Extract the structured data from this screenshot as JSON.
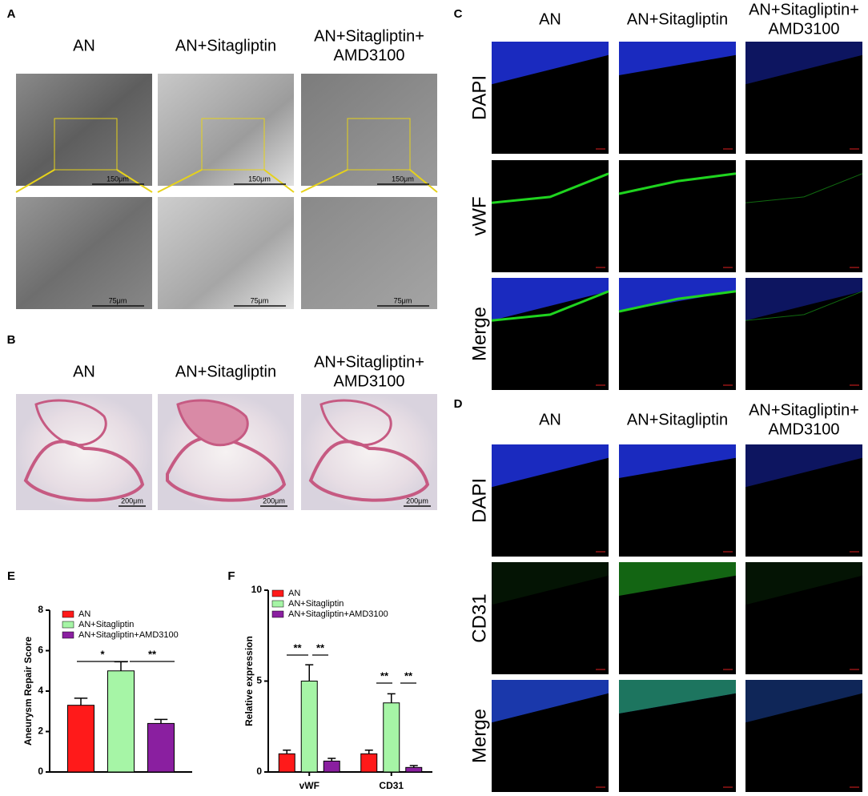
{
  "figure": {
    "panel_A": {
      "label": "A",
      "columns": [
        [
          "AN"
        ],
        [
          "AN+Sitagliptin"
        ],
        [
          "AN+Sitagliptin+",
          "AMD3100"
        ]
      ],
      "scale_top": "150μm",
      "scale_bottom": "75μm"
    },
    "panel_B": {
      "label": "B",
      "columns": [
        [
          "AN"
        ],
        [
          "AN+Sitagliptin"
        ],
        [
          "AN+Sitagliptin+",
          "AMD3100"
        ]
      ],
      "scale": "200μm"
    },
    "panel_C": {
      "label": "C",
      "columns": [
        [
          "AN"
        ],
        [
          "AN+Sitagliptin"
        ],
        [
          "AN+Sitagliptin+",
          "AMD3100"
        ]
      ],
      "rows": [
        "DAPI",
        "vWF",
        "Merge"
      ]
    },
    "panel_D": {
      "label": "D",
      "columns": [
        [
          "AN"
        ],
        [
          "AN+Sitagliptin"
        ],
        [
          "AN+Sitagliptin+",
          "AMD3100"
        ]
      ],
      "rows": [
        "DAPI",
        "CD31",
        "Merge"
      ]
    }
  },
  "chart_data": [
    {
      "type": "bar",
      "panel_label": "E",
      "ylabel": "Aneurysm Repair Score",
      "categories": [
        null
      ],
      "ylim": [
        0,
        8
      ],
      "yticks": [
        0,
        2,
        4,
        6,
        8
      ],
      "series": [
        {
          "name": "AN",
          "color": "#ff1a1a",
          "values": [
            3.3
          ],
          "errors": [
            0.35
          ]
        },
        {
          "name": "AN+Sitagliptin",
          "color": "#a6f5a6",
          "values": [
            5.0
          ],
          "errors": [
            0.45
          ]
        },
        {
          "name": "AN+Sitagliptin+AMD3100",
          "color": "#8a1fa0",
          "values": [
            2.4
          ],
          "errors": [
            0.2
          ]
        }
      ],
      "annotations": [
        "*",
        "**"
      ]
    },
    {
      "type": "bar",
      "panel_label": "F",
      "ylabel": "Relative expression",
      "categories": [
        "vWF",
        "CD31"
      ],
      "ylim": [
        0,
        10
      ],
      "yticks": [
        0,
        5,
        10
      ],
      "series": [
        {
          "name": "AN",
          "color": "#ff1a1a",
          "values": [
            1.0,
            1.0
          ],
          "errors": [
            0.2,
            0.2
          ]
        },
        {
          "name": "AN+Sitagliptin",
          "color": "#a6f5a6",
          "values": [
            5.0,
            3.8
          ],
          "errors": [
            0.9,
            0.5
          ]
        },
        {
          "name": "AN+Sitagliptin+AMD3100",
          "color": "#8a1fa0",
          "values": [
            0.6,
            0.25
          ],
          "errors": [
            0.15,
            0.1
          ]
        }
      ],
      "annotations": [
        "**",
        "**",
        "**",
        "**"
      ]
    }
  ]
}
